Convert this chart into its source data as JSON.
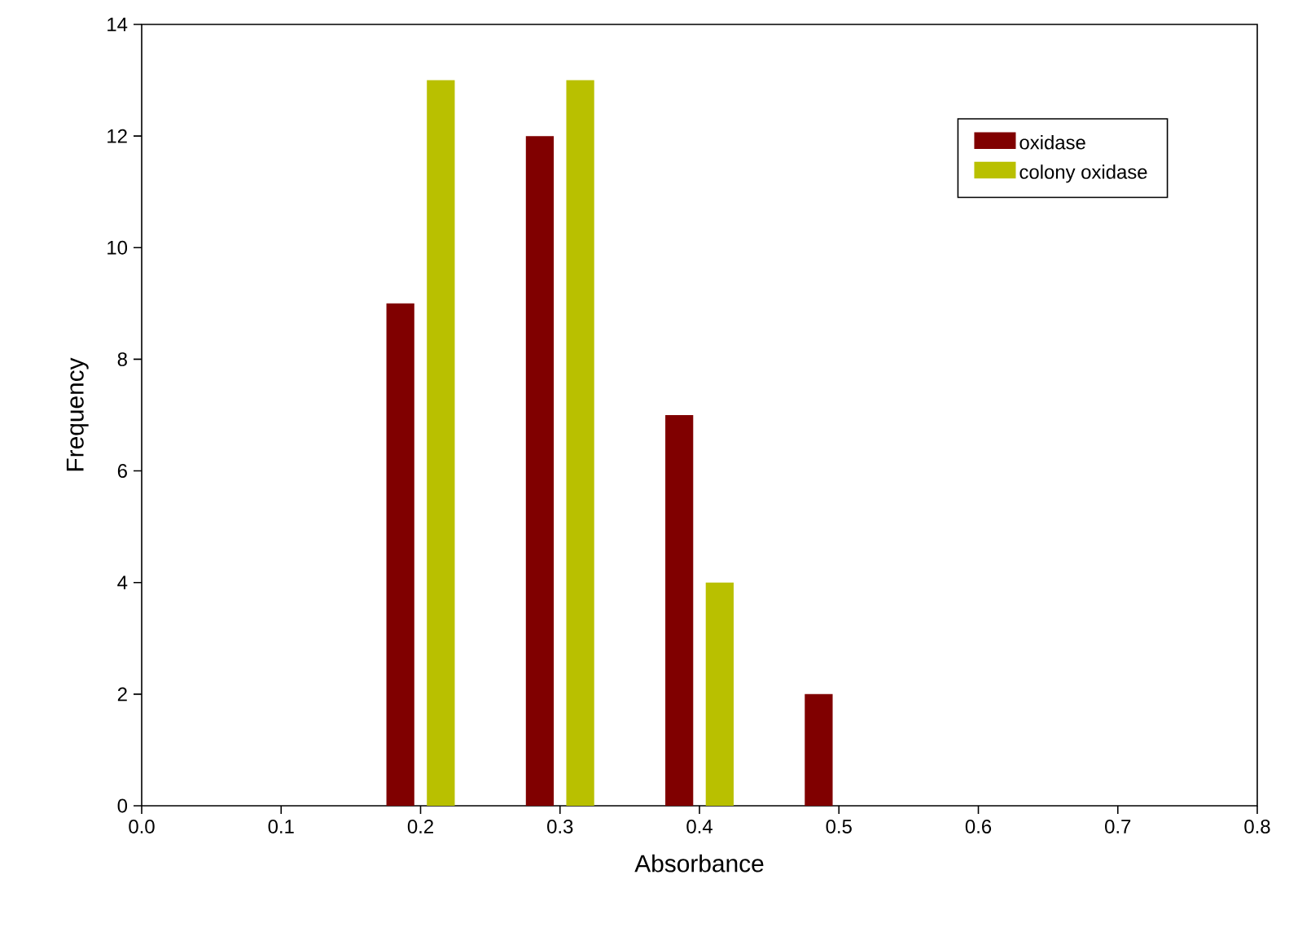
{
  "chart_data": {
    "type": "bar",
    "xlabel": "Absorbance",
    "ylabel": "Frequency",
    "x": [
      0.2,
      0.3,
      0.4,
      0.5
    ],
    "series": [
      {
        "name": "oxidase",
        "color": "#800000",
        "values": [
          9,
          12,
          7,
          2
        ]
      },
      {
        "name": "colony oxidase",
        "color": "#b9c000",
        "values": [
          13,
          13,
          4,
          null
        ]
      }
    ],
    "xlim": [
      0,
      0.8
    ],
    "xticks": [
      {
        "value": 0,
        "label": "0.0"
      },
      0.1,
      0.2,
      0.3,
      0.4,
      0.5,
      0.6,
      0.7,
      0.8
    ],
    "ylim": [
      0,
      14
    ],
    "yticks": [
      0,
      2,
      4,
      6,
      8,
      10,
      12,
      14
    ],
    "legend": "top right"
  }
}
